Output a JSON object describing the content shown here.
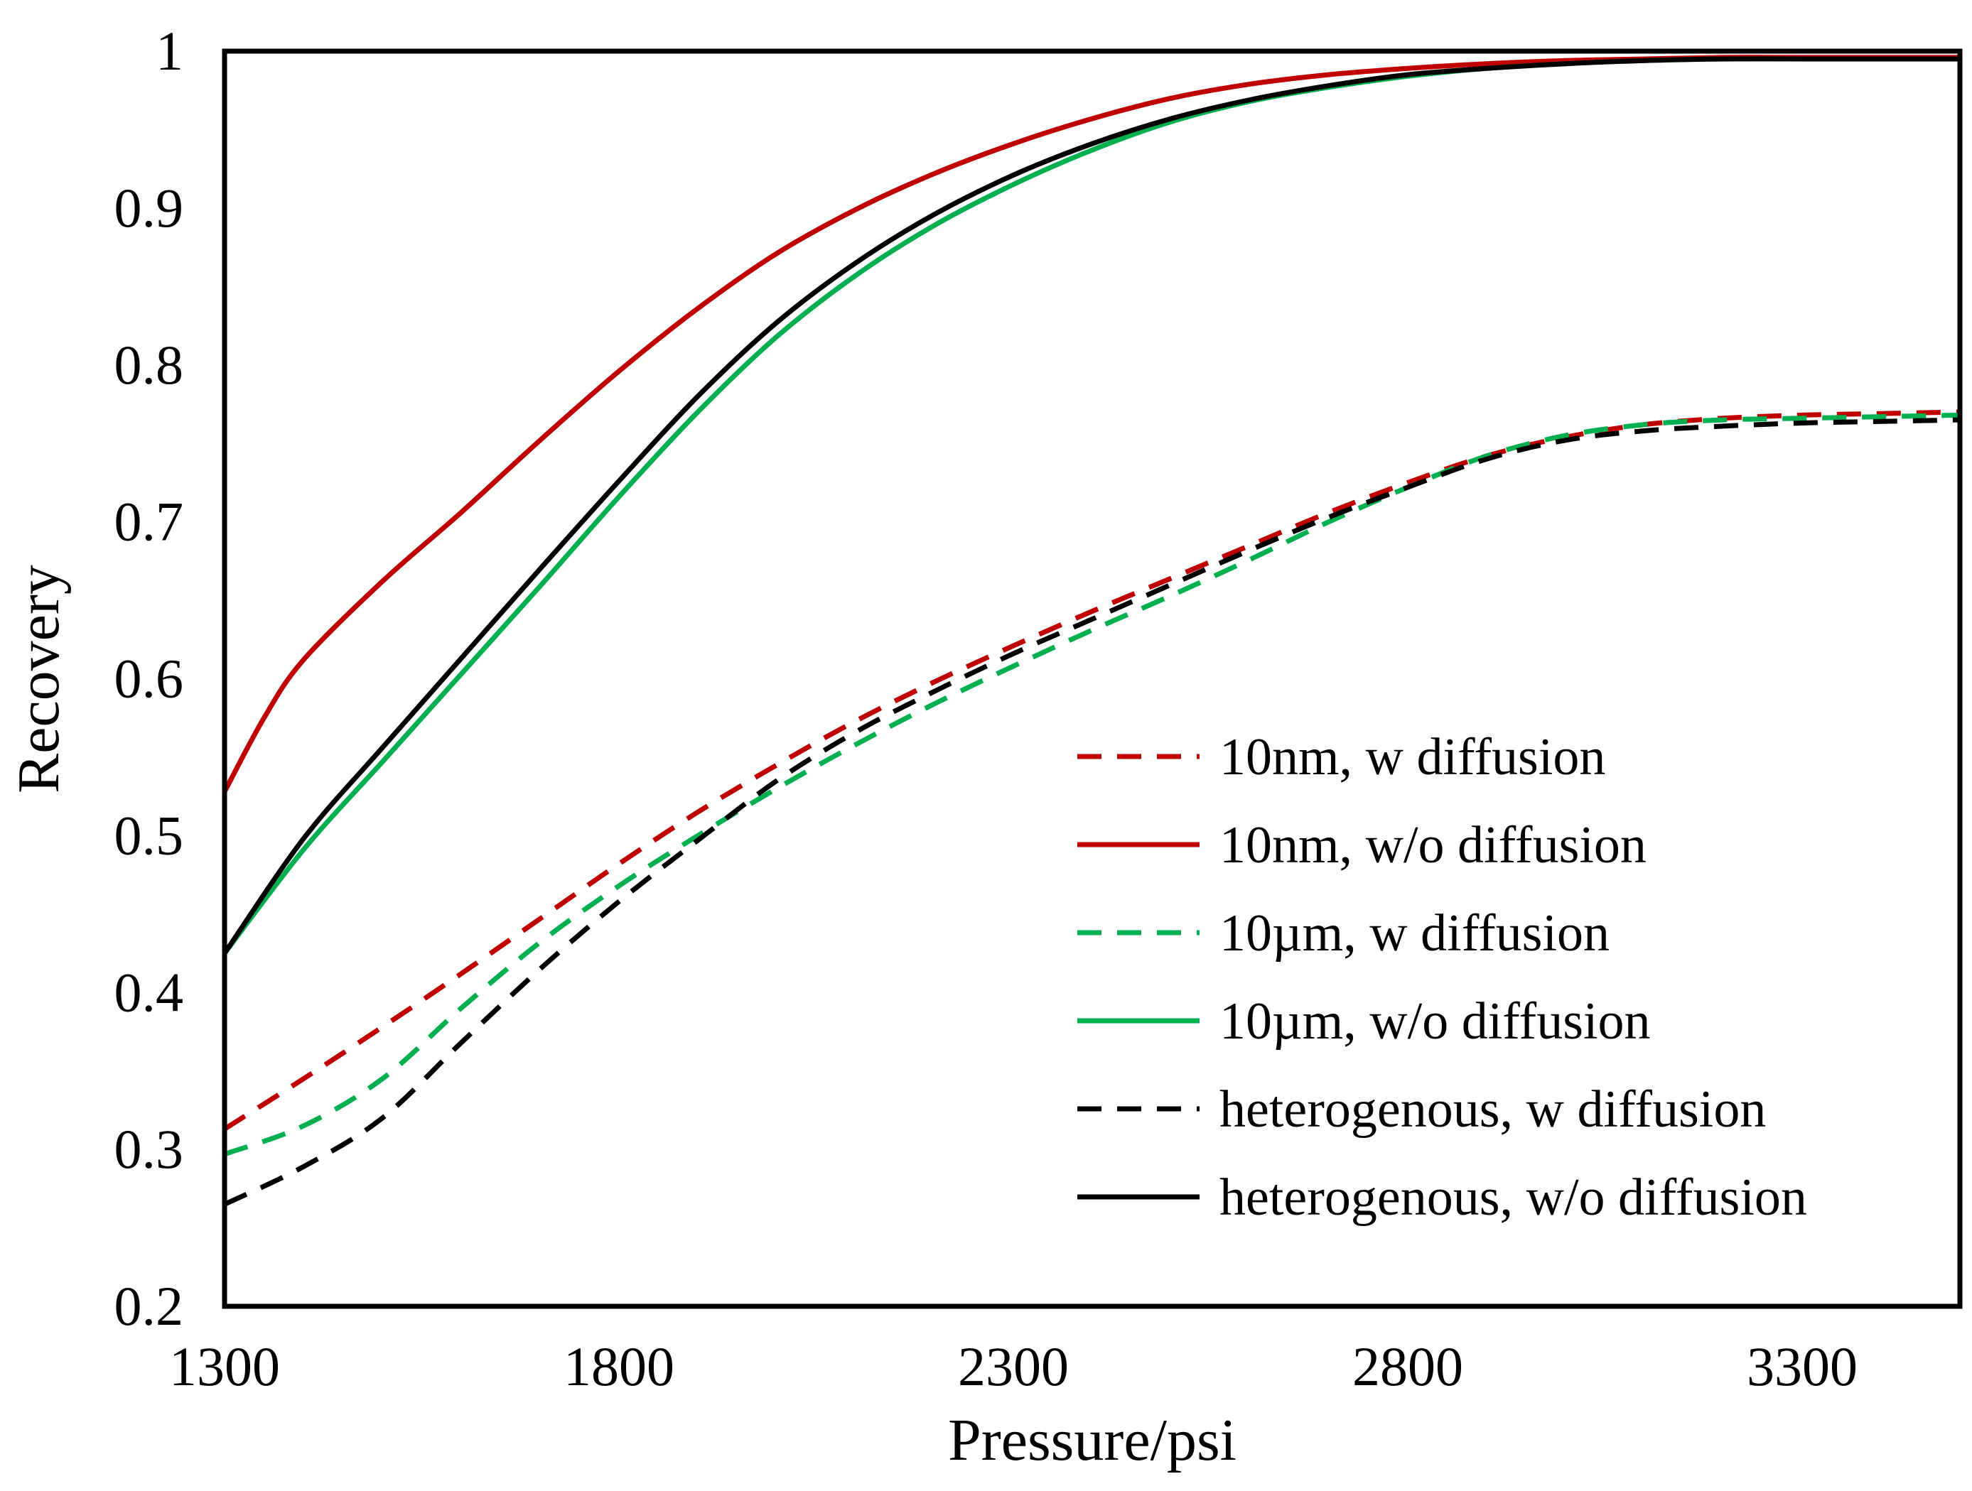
{
  "chart_data": {
    "type": "line",
    "title": "",
    "xlabel": "Pressure/psi",
    "ylabel": "Recovery",
    "xlim": [
      1300,
      3500
    ],
    "ylim": [
      0.2,
      1.0
    ],
    "x_ticks": [
      "1300",
      "1800",
      "2300",
      "2800",
      "3300"
    ],
    "y_ticks": [
      "0.2",
      "0.3",
      "0.4",
      "0.5",
      "0.6",
      "0.7",
      "0.8",
      "0.9",
      "1"
    ],
    "grid": false,
    "legend_position": "center-right",
    "series": [
      {
        "name": "10nm, w diffusion",
        "color": "#c00000",
        "dash": "dashed",
        "x": [
          1300,
          1400,
          1500,
          1600,
          1700,
          1800,
          1900,
          2000,
          2100,
          2200,
          2300,
          2400,
          2500,
          2600,
          2700,
          2800,
          2900,
          3000,
          3100,
          3200,
          3300,
          3400,
          3500
        ],
        "y": [
          0.313,
          0.345,
          0.378,
          0.412,
          0.447,
          0.482,
          0.515,
          0.545,
          0.573,
          0.598,
          0.621,
          0.643,
          0.664,
          0.685,
          0.706,
          0.725,
          0.742,
          0.754,
          0.762,
          0.766,
          0.768,
          0.769,
          0.77
        ]
      },
      {
        "name": "10nm, w/o diffusion",
        "color": "#c00000",
        "dash": "solid",
        "x": [
          1300,
          1350,
          1400,
          1500,
          1600,
          1700,
          1800,
          1900,
          2000,
          2100,
          2200,
          2300,
          2400,
          2500,
          2600,
          2700,
          2800,
          2900,
          3000,
          3100,
          3200,
          3300,
          3400,
          3500
        ],
        "y": [
          0.528,
          0.575,
          0.612,
          0.662,
          0.706,
          0.752,
          0.796,
          0.836,
          0.871,
          0.899,
          0.922,
          0.941,
          0.957,
          0.97,
          0.979,
          0.985,
          0.989,
          0.992,
          0.994,
          0.995,
          0.996,
          0.996,
          0.996,
          0.996
        ]
      },
      {
        "name": "10µm, w diffusion",
        "color": "#00b050",
        "dash": "dashed",
        "x": [
          1300,
          1400,
          1500,
          1600,
          1700,
          1800,
          1900,
          2000,
          2100,
          2200,
          2300,
          2400,
          2500,
          2600,
          2700,
          2800,
          2900,
          3000,
          3100,
          3200,
          3300,
          3400,
          3500
        ],
        "y": [
          0.297,
          0.315,
          0.345,
          0.39,
          0.432,
          0.468,
          0.5,
          0.53,
          0.558,
          0.584,
          0.608,
          0.631,
          0.653,
          0.676,
          0.7,
          0.722,
          0.742,
          0.755,
          0.762,
          0.765,
          0.766,
          0.767,
          0.768
        ]
      },
      {
        "name": "10µm, w/o diffusion",
        "color": "#00b050",
        "dash": "solid",
        "x": [
          1300,
          1400,
          1500,
          1600,
          1700,
          1800,
          1900,
          2000,
          2100,
          2200,
          2300,
          2400,
          2500,
          2600,
          2700,
          2800,
          2900,
          3000,
          3100,
          3200,
          3300,
          3400,
          3500
        ],
        "y": [
          0.425,
          0.491,
          0.547,
          0.603,
          0.659,
          0.716,
          0.77,
          0.818,
          0.857,
          0.889,
          0.915,
          0.937,
          0.955,
          0.968,
          0.977,
          0.984,
          0.989,
          0.992,
          0.994,
          0.995,
          0.995,
          0.995,
          0.995
        ]
      },
      {
        "name": "heterogenous, w diffusion",
        "color": "#000000",
        "dash": "dashed",
        "x": [
          1300,
          1400,
          1500,
          1600,
          1700,
          1800,
          1900,
          2000,
          2100,
          2200,
          2300,
          2400,
          2500,
          2600,
          2700,
          2800,
          2900,
          3000,
          3100,
          3200,
          3300,
          3400,
          3500
        ],
        "y": [
          0.265,
          0.289,
          0.32,
          0.368,
          0.415,
          0.458,
          0.497,
          0.535,
          0.566,
          0.592,
          0.616,
          0.638,
          0.66,
          0.682,
          0.703,
          0.722,
          0.74,
          0.752,
          0.758,
          0.761,
          0.763,
          0.764,
          0.765
        ]
      },
      {
        "name": "heterogenous, w/o diffusion",
        "color": "#000000",
        "dash": "solid",
        "x": [
          1300,
          1400,
          1500,
          1600,
          1700,
          1800,
          1900,
          2000,
          2100,
          2200,
          2300,
          2400,
          2500,
          2600,
          2700,
          2800,
          2900,
          3000,
          3100,
          3200,
          3300,
          3400,
          3500
        ],
        "y": [
          0.425,
          0.498,
          0.556,
          0.613,
          0.67,
          0.726,
          0.78,
          0.827,
          0.865,
          0.896,
          0.921,
          0.941,
          0.957,
          0.969,
          0.978,
          0.985,
          0.989,
          0.992,
          0.994,
          0.995,
          0.995,
          0.995,
          0.995
        ]
      }
    ]
  }
}
